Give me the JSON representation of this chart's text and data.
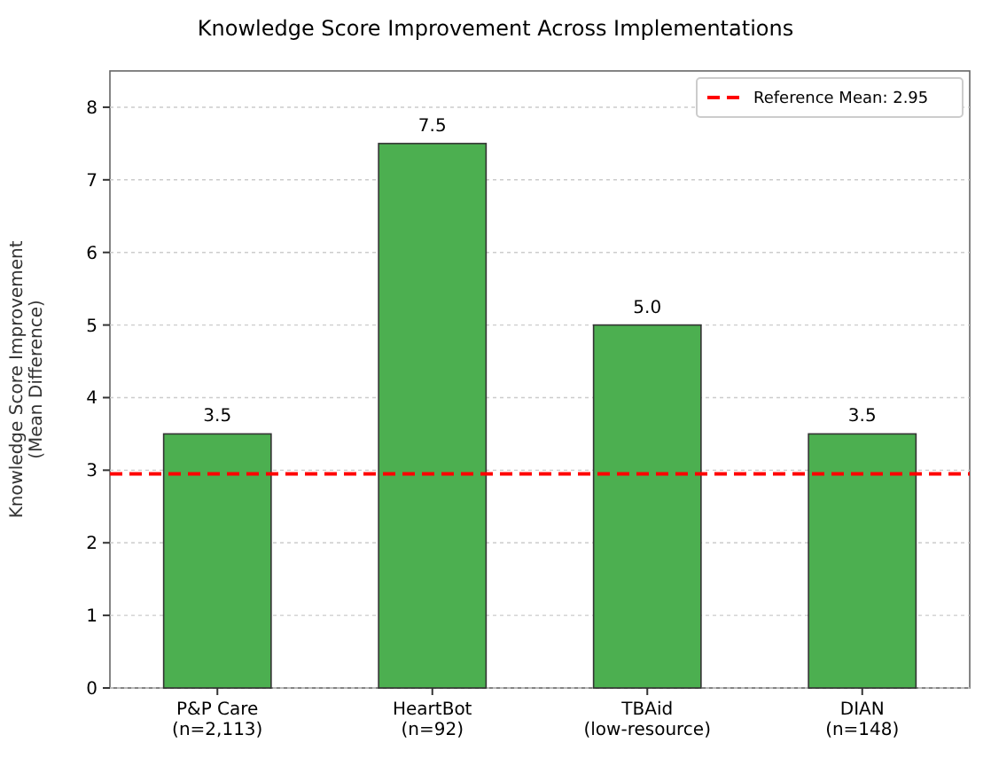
{
  "chart_data": {
    "type": "bar",
    "title": "Knowledge Score Improvement Across Implementations",
    "ylabel": "Knowledge Score Improvement\n(Mean Difference)",
    "categories": [
      "P&P Care\n(n=2,113)",
      "HeartBot\n(n=92)",
      "TBAid\n(low-resource)",
      "DIAN\n(n=148)"
    ],
    "values": [
      3.5,
      7.5,
      5.0,
      3.5
    ],
    "color": "#4caf50",
    "data_labels": true,
    "value_labels": [
      "3.5",
      "7.5",
      "5.0",
      "3.5"
    ],
    "ylim": [
      0,
      8.5
    ],
    "yticks": [
      0,
      1,
      2,
      3,
      4,
      5,
      6,
      7,
      8
    ],
    "grid": "y",
    "legend": "top right",
    "ref_lines": [
      {
        "axis": "y",
        "value": 2.95,
        "label": "Reference Mean: 2.95",
        "color": "#ff0000",
        "line_style": "dashed"
      }
    ]
  }
}
